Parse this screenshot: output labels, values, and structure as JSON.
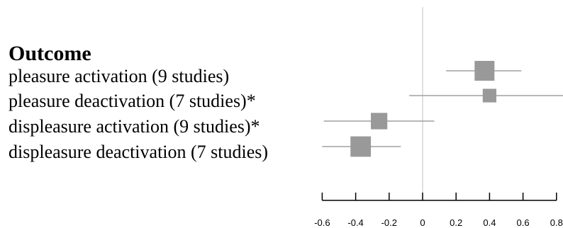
{
  "chart_data": {
    "type": "forest",
    "column_header": "Outcome",
    "rows": [
      {
        "label": "pleasure activation (9 studies)",
        "estimate": 0.37,
        "ci_low": 0.14,
        "ci_high": 0.59,
        "weight": 1.0
      },
      {
        "label": "pleasure deactivation (7 studies)*",
        "estimate": 0.4,
        "ci_low": -0.08,
        "ci_high": 0.85,
        "weight": 0.45
      },
      {
        "label": "displeasure activation (9 studies)*",
        "estimate": -0.26,
        "ci_low": -0.59,
        "ci_high": 0.07,
        "weight": 0.7
      },
      {
        "label": "displeasure deactivation (7 studies)",
        "estimate": -0.37,
        "ci_low": -0.6,
        "ci_high": -0.13,
        "weight": 1.05
      }
    ],
    "xlim": [
      -0.6,
      0.85
    ],
    "ticks": [
      -0.6,
      -0.4,
      -0.2,
      0,
      0.2,
      0.4,
      0.6,
      0.8
    ],
    "tick_labels": [
      "-0.6",
      "-0.4",
      "-0.2",
      "0",
      "0.2",
      "0.4",
      "0.6",
      "0.8"
    ],
    "reference_line": 0,
    "colors": {
      "marker": "#999999",
      "ci_line": "#a0a0a0",
      "reference": "#c0c0c0",
      "axis": "#000000"
    }
  }
}
